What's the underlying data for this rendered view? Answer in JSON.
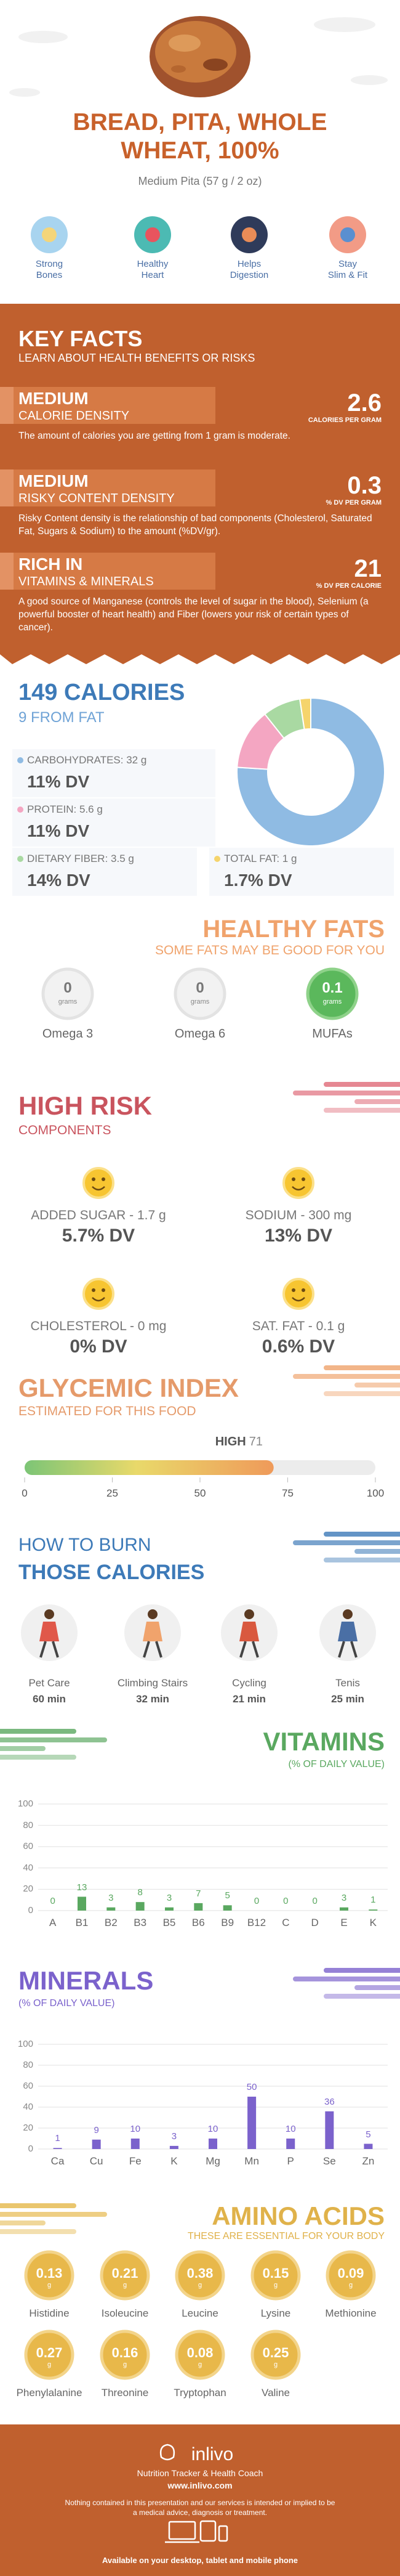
{
  "header": {
    "title": "BREAD, PITA, WHOLE WHEAT, 100%",
    "subtitle": "Medium Pita (57 g / 2 oz)"
  },
  "benefits": [
    "Strong\nBones",
    "Healthy\nHeart",
    "Helps\nDigestion",
    "Stay\nSlim & Fit"
  ],
  "key_facts": {
    "title": "KEY FACTS",
    "subtitle": "LEARN ABOUT HEALTH BENEFITS OR RISKS",
    "facts": [
      {
        "level": "MEDIUM",
        "name": "CALORIE DENSITY",
        "value": 2.6,
        "unit": "CALORIES PER GRAM",
        "text": "The amount of calories you are getting from 1 gram is moderate."
      },
      {
        "level": "MEDIUM",
        "name": "RISKY CONTENT DENSITY",
        "value": 0.3,
        "unit": "% DV PER GRAM",
        "text": "Risky Content density is the relationship of bad components (Cholesterol, Saturated Fat, Sugars & Sodium) to the amount (%DV/gr)."
      },
      {
        "level": "RICH IN",
        "name": "VITAMINS & MINERALS",
        "value": 21,
        "unit": "% DV PER CALORIE",
        "text": "A good source of Manganese (controls the level of sugar in the blood), Selenium (a powerful booster of heart health) and Fiber (lowers your risk of certain types of cancer)."
      }
    ]
  },
  "calories": {
    "title": "149 CALORIES",
    "subtitle": "9 FROM FAT",
    "nutrients": [
      {
        "label": "CARBOHYDRATES: 32 g",
        "value": 32,
        "dv": "11% DV",
        "color": "#8fbbe3"
      },
      {
        "label": "PROTEIN: 5.6 g",
        "value": 5.6,
        "dv": "11% DV",
        "color": "#f4a6c2"
      },
      {
        "label": "DIETARY FIBER: 3.5 g",
        "value": 3.5,
        "dv": "14% DV",
        "color": "#a9d9a2"
      },
      {
        "label": "TOTAL FAT: 1 g",
        "value": 1,
        "dv": "1.7% DV",
        "color": "#f5d46c"
      }
    ]
  },
  "healthy_fats": {
    "title": "HEALTHY FATS",
    "subtitle": "SOME FATS MAY BE GOOD FOR YOU",
    "unit": "grams",
    "items": [
      {
        "name": "Omega 3",
        "value": 0
      },
      {
        "name": "Omega 6",
        "value": 0
      },
      {
        "name": "MUFAs",
        "value": 0.1
      }
    ]
  },
  "high_risk": {
    "title": "HIGH RISK",
    "subtitle": "COMPONENTS",
    "items": [
      {
        "label": "ADDED SUGAR - 1.7 g",
        "dv": "5.7% DV"
      },
      {
        "label": "SODIUM - 300 mg",
        "dv": "13% DV"
      },
      {
        "label": "CHOLESTEROL - 0 mg",
        "dv": "0% DV"
      },
      {
        "label": "SAT. FAT - 0.1 g",
        "dv": "0.6% DV"
      }
    ]
  },
  "glycemic": {
    "title": "GLYCEMIC INDEX",
    "subtitle": "ESTIMATED FOR THIS FOOD",
    "label": "HIGH",
    "value": 71,
    "xlim": [
      0,
      100
    ],
    "xticks": [
      0,
      25,
      50,
      75,
      100
    ]
  },
  "burn": {
    "title": "HOW TO BURN",
    "subtitle": "THOSE CALORIES",
    "activities": [
      {
        "name": "Pet Care",
        "time": "60 min"
      },
      {
        "name": "Climbing Stairs",
        "time": "32 min"
      },
      {
        "name": "Cycling",
        "time": "21 min"
      },
      {
        "name": "Tenis",
        "time": "25 min"
      }
    ]
  },
  "chart_data": [
    {
      "type": "bar",
      "title": "VITAMINS",
      "subtitle": "(% OF DAILY VALUE)",
      "categories": [
        "A",
        "B1",
        "B2",
        "B3",
        "B5",
        "B6",
        "B9",
        "B12",
        "C",
        "D",
        "E",
        "K"
      ],
      "values": [
        0,
        13,
        3,
        8,
        3,
        7,
        5,
        0,
        0,
        0,
        3,
        1
      ],
      "color": "#5aa860",
      "ylim": [
        0,
        100
      ],
      "yticks": [
        0,
        20,
        40,
        60,
        80,
        100
      ],
      "grid": true
    },
    {
      "type": "bar",
      "title": "MINERALS",
      "subtitle": "(% OF DAILY VALUE)",
      "categories": [
        "Ca",
        "Cu",
        "Fe",
        "K",
        "Mg",
        "Mn",
        "P",
        "Se",
        "Zn"
      ],
      "values": [
        1,
        9,
        10,
        3,
        10,
        50,
        10,
        36,
        5
      ],
      "color": "#7b62cc",
      "ylim": [
        0,
        100
      ],
      "yticks": [
        0,
        20,
        40,
        60,
        80,
        100
      ],
      "grid": true
    }
  ],
  "amino_acids": {
    "title": "AMINO ACIDS",
    "subtitle": "THESE ARE ESSENTIAL FOR YOUR BODY",
    "unit": "g",
    "items": [
      {
        "name": "Histidine",
        "value": 0.13
      },
      {
        "name": "Isoleucine",
        "value": 0.21
      },
      {
        "name": "Leucine",
        "value": 0.38
      },
      {
        "name": "Lysine",
        "value": 0.15
      },
      {
        "name": "Methionine",
        "value": 0.09
      },
      {
        "name": "Phenylalanine",
        "value": 0.27
      },
      {
        "name": "Threonine",
        "value": 0.16
      },
      {
        "name": "Tryptophan",
        "value": 0.08
      },
      {
        "name": "Valine",
        "value": 0.25
      }
    ]
  },
  "footer": {
    "brand": "inlivo",
    "tagline": "Nutrition Tracker & Health Coach",
    "url": "www.inlivo.com",
    "disclaimer": "Nothing contained in this presentation and our services is intended or implied to be a medical advice, diagnosis or treatment.",
    "available": "Available on your desktop, tablet and mobile phone"
  }
}
